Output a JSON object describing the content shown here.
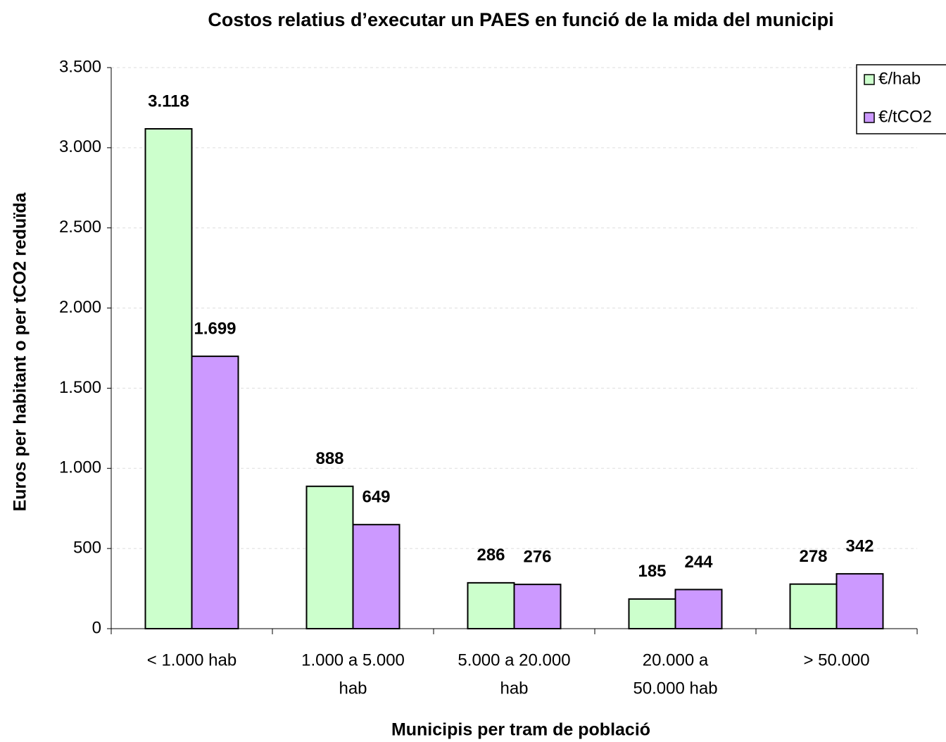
{
  "chart_data": {
    "type": "bar",
    "title": "Costos relatius d’executar un PAES en funció de la mida del municipi",
    "x_label": "Municipis per tram de població",
    "y_label": "Euros per habitant o per tCO2 reduïda",
    "categories": [
      [
        "< 1.000 hab"
      ],
      [
        "1.000 a 5.000",
        "hab"
      ],
      [
        "5.000 a 20.000",
        "hab"
      ],
      [
        "20.000 a",
        "50.000 hab"
      ],
      [
        "> 50.000"
      ]
    ],
    "series": [
      {
        "name": "€/hab",
        "color": "#ccffcc",
        "values": [
          3118,
          888,
          286,
          185,
          278
        ],
        "value_labels": [
          "3.118",
          "888",
          "286",
          "185",
          "278"
        ]
      },
      {
        "name": "€/tCO2",
        "color": "#cc99ff",
        "values": [
          1699,
          649,
          276,
          244,
          342
        ],
        "value_labels": [
          "1.699",
          "649",
          "276",
          "244",
          "342"
        ]
      }
    ],
    "ylim": [
      0,
      3500
    ],
    "yticks": [
      0,
      500,
      {
        "value": 1000,
        "label": "1.000"
      },
      {
        "value": 1500,
        "label": "1.500"
      },
      {
        "value": 2000,
        "label": "2.000"
      },
      {
        "value": 2500,
        "label": "2.500"
      },
      {
        "value": 3000,
        "label": "3.000"
      },
      {
        "value": 3500,
        "label": "3.500"
      }
    ],
    "grid": true,
    "legend": "upper right"
  }
}
